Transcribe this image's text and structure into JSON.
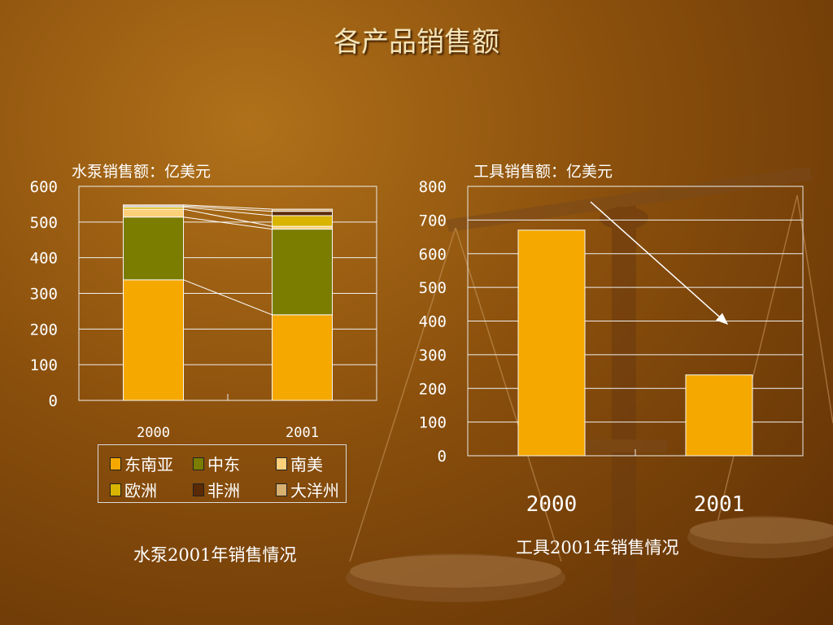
{
  "slide": {
    "title": "各产品销售额"
  },
  "pump": {
    "unit_label": "水泵销售额：亿美元",
    "caption": "水泵2001年销售情况"
  },
  "tools": {
    "unit_label": "工具销售额：亿美元",
    "caption": "工具2001年销售情况"
  },
  "legend": {
    "items": [
      {
        "label": "东南亚",
        "color": "#f5a800"
      },
      {
        "label": "中东",
        "color": "#7a7d00"
      },
      {
        "label": "南美",
        "color": "#ffd07a"
      },
      {
        "label": "欧洲",
        "color": "#d9b400"
      },
      {
        "label": "非洲",
        "color": "#5a2a06"
      },
      {
        "label": "大洋州",
        "color": "#d8b070"
      }
    ]
  },
  "chart_data": [
    {
      "type": "bar",
      "stacked": true,
      "categories": [
        "2000",
        "2001"
      ],
      "series": [
        {
          "name": "东南亚",
          "color": "#f5a800",
          "values": [
            338,
            240
          ]
        },
        {
          "name": "中东",
          "color": "#7a7d00",
          "values": [
            176,
            240
          ]
        },
        {
          "name": "南美",
          "color": "#ffd07a",
          "values": [
            22,
            8
          ]
        },
        {
          "name": "欧洲",
          "color": "#d9b400",
          "values": [
            6,
            30
          ]
        },
        {
          "name": "非洲",
          "color": "#5a2a06",
          "values": [
            3,
            12
          ]
        },
        {
          "name": "大洋州",
          "color": "#d8b070",
          "values": [
            3,
            6
          ]
        }
      ],
      "ylim": [
        0,
        600
      ],
      "yticks": [
        "0",
        "100",
        "200",
        "300",
        "400",
        "500",
        "600"
      ],
      "grid": true,
      "connector_lines": true,
      "legend_position": "bottom"
    },
    {
      "type": "bar",
      "categories": [
        "2000",
        "2001"
      ],
      "values": [
        670,
        240
      ],
      "color": "#f5a800",
      "ylim": [
        0,
        800
      ],
      "yticks": [
        "0",
        "100",
        "200",
        "300",
        "400",
        "500",
        "600",
        "700",
        "800"
      ],
      "grid": true,
      "annotation": "arrow pointing down from 2000 bar toward 2001 bar"
    }
  ]
}
